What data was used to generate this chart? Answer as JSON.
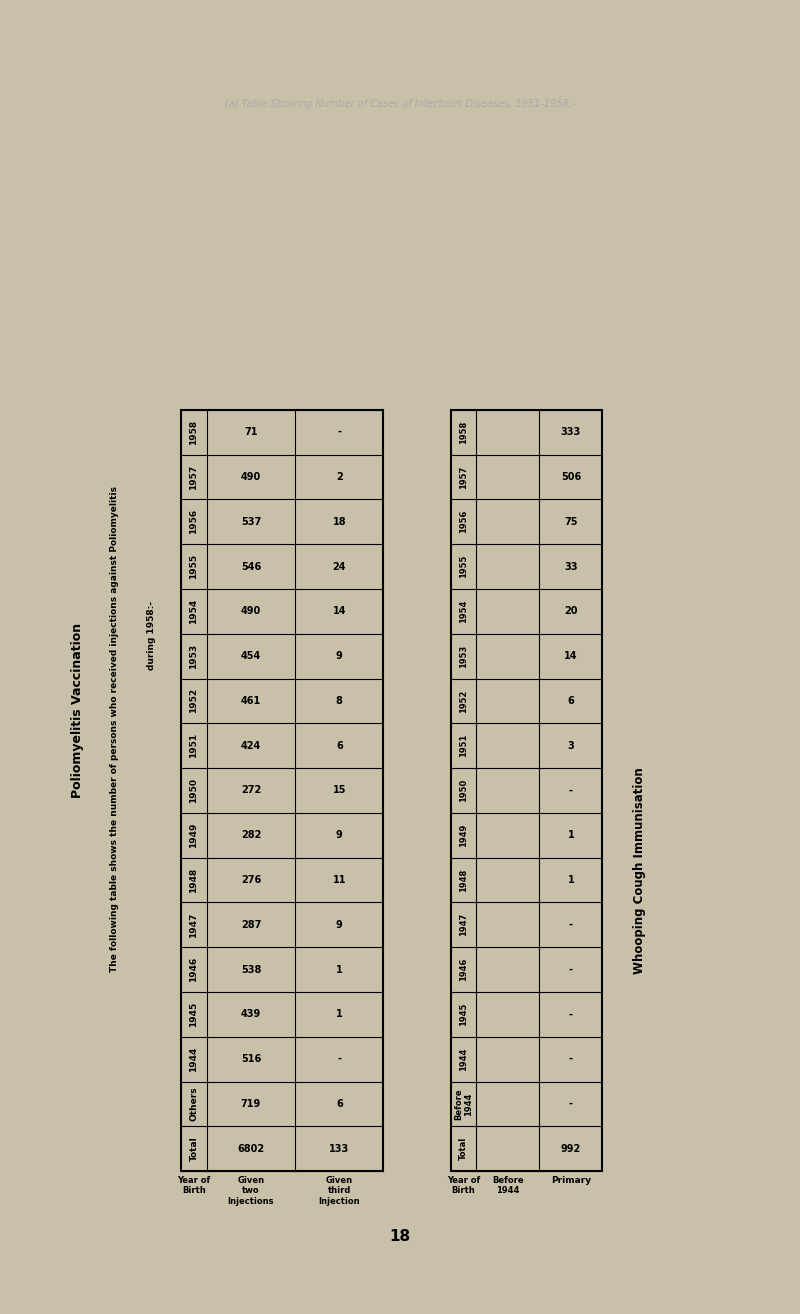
{
  "bg_color": "#f0ebe0",
  "page_bg": "#c8c0a8",
  "inner_bg": "#ddd8c8",
  "top_text": "(a) Table Showing Number of Cases of Infectious Diseases, 1951-1958:-",
  "polio_title1": "Poliomyelitis Vaccination",
  "polio_title2": "The following table shows the number of persons who received injections against Poliomyelitis",
  "polio_title3": "during 1958:-",
  "polio_rows": [
    "1958",
    "1957",
    "1956",
    "1955",
    "1954",
    "1953",
    "1952",
    "1951",
    "1950",
    "1949",
    "1948",
    "1947",
    "1946",
    "1945",
    "1944",
    "Others",
    "Total"
  ],
  "polio_two_inj": [
    "71",
    "490",
    "537",
    "546",
    "490",
    "454",
    "461",
    "424",
    "272",
    "282",
    "276",
    "287",
    "538",
    "439",
    "516",
    "719",
    "6802"
  ],
  "polio_third_inj": [
    "-",
    "2",
    "18",
    "24",
    "14",
    "9",
    "8",
    "6",
    "15",
    "9",
    "11",
    "9",
    "1",
    "1",
    "-",
    "6",
    "133"
  ],
  "whooping_title": "Whooping Cough Immunisation",
  "whooping_rows": [
    "1958",
    "1957",
    "1956",
    "1955",
    "1954",
    "1953",
    "1952",
    "1951",
    "1950",
    "1949",
    "1948",
    "1947",
    "1946",
    "1945",
    "1944",
    "Before\n1944",
    "Total"
  ],
  "whooping_primary": [
    "333",
    "506",
    "75",
    "33",
    "20",
    "14",
    "6",
    "3",
    "-",
    "1",
    "1",
    "-",
    "-",
    "-",
    "-",
    "-",
    "992"
  ],
  "footer": "18"
}
